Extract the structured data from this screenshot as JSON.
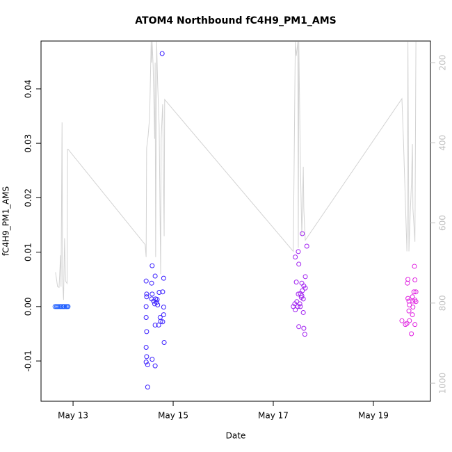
{
  "chart_data": {
    "type": "scatter",
    "title": "ATOM4 Northbound fC4H9_PM1_AMS",
    "xlabel": "Date",
    "ylabel": "fC4H9_PM1_AMS",
    "xlim": [
      12.36,
      20.14
    ],
    "xticks": [
      {
        "value": 13,
        "label": "May 13"
      },
      {
        "value": 15,
        "label": "May 15"
      },
      {
        "value": 17,
        "label": "May 17"
      },
      {
        "value": 19,
        "label": "May 19"
      }
    ],
    "ylim": [
      -0.0174,
      0.0488
    ],
    "yticks": [
      -0.01,
      {
        "value": 0,
        "label": "0.00"
      },
      0.01,
      0.02,
      0.03,
      0.04
    ],
    "y2lim": [
      1045,
      146
    ],
    "y2ticks": [
      200,
      400,
      600,
      800,
      1000
    ],
    "y2color": "#c0c0c0",
    "series": [
      {
        "type": "line",
        "axis": "y2",
        "color": "#d3d3d3",
        "x": [
          12.65,
          12.69,
          12.72,
          12.75,
          12.76,
          12.78,
          12.79,
          12.81,
          12.83,
          12.85,
          12.88,
          12.89,
          12.9,
          14.44,
          14.46,
          14.47,
          14.5,
          14.53,
          14.56,
          14.57,
          14.58,
          14.6,
          14.63,
          14.64,
          14.65,
          14.67,
          14.69,
          14.72,
          14.75,
          14.76,
          14.79,
          14.82,
          14.83,
          17.4,
          17.44,
          17.46,
          17.49,
          17.5,
          17.51,
          17.54,
          17.57,
          17.6,
          17.61,
          17.63,
          17.64,
          19.57,
          19.6,
          19.67,
          19.68,
          19.69,
          19.71,
          19.74,
          19.76,
          19.78,
          19.79,
          19.83,
          19.85
        ],
        "values": [
          723,
          759,
          761,
          681,
          759,
          349,
          737,
          792,
          638,
          745,
          751,
          416,
          416,
          654,
          685,
          413,
          382,
          335,
          148,
          200,
          148,
          209,
          390,
          200,
          685,
          148,
          252,
          356,
          728,
          390,
          304,
          633,
          292,
          671,
          148,
          183,
          148,
          662,
          148,
          442,
          633,
          460,
          564,
          621,
          643,
          290,
          390,
          671,
          564,
          148,
          671,
          564,
          503,
          403,
          564,
          647,
          148
        ]
      },
      {
        "type": "scatter",
        "color": "#1f5fff",
        "x": [
          12.64,
          12.67,
          12.69,
          12.72,
          12.75,
          12.76,
          12.79,
          12.81,
          12.83,
          12.86,
          12.88,
          12.9
        ],
        "values": [
          0,
          0,
          0,
          0,
          0,
          0,
          0,
          0,
          0,
          0,
          0,
          0
        ]
      },
      {
        "type": "scatter",
        "color": "#3a1fff",
        "x": [
          14.46,
          14.47,
          14.47,
          14.46,
          14.46,
          14.47,
          14.46,
          14.47,
          14.46,
          14.49,
          14.49,
          14.57,
          14.58,
          14.58,
          14.57,
          14.58,
          14.61,
          14.63,
          14.64,
          14.64,
          14.64,
          14.65,
          14.67,
          14.68,
          14.69,
          14.71,
          14.72,
          14.74,
          14.75,
          14.78,
          14.79,
          14.81,
          14.81,
          14.81,
          14.79,
          14.82
        ],
        "values": [
          0.0047,
          0.0023,
          0.0018,
          0,
          -0.002,
          -0.0046,
          -0.0075,
          -0.0092,
          -0.0102,
          -0.0107,
          -0.0148,
          0.0043,
          0.0075,
          0.0023,
          0.0014,
          -0.0097,
          0.001,
          0.0005,
          0.0056,
          -0.0034,
          -0.0109,
          0.0014,
          0.0008,
          0.0013,
          0.0003,
          -0.0034,
          0.0026,
          -0.002,
          -0.0027,
          0.0465,
          0.0027,
          0.0052,
          -0.0001,
          -0.0015,
          -0.0028,
          -0.0066
        ]
      },
      {
        "type": "scatter",
        "color": "#a020f0",
        "x": [
          17.44,
          17.5,
          17.51,
          17.46,
          17.4,
          17.43,
          17.44,
          17.47,
          17.49,
          17.5,
          17.51,
          17.53,
          17.54,
          17.54,
          17.56,
          17.57,
          17.57,
          17.58,
          17.58,
          17.6,
          17.61,
          17.61,
          17.63,
          17.64,
          17.67,
          17.64,
          17.6
        ],
        "values": [
          0.0091,
          0.0101,
          0.0078,
          0.0045,
          0,
          0.0005,
          -0.0006,
          0.0009,
          0,
          0.0023,
          -0.0037,
          0.0005,
          0.0024,
          0,
          0.0017,
          0.0043,
          0.002,
          0.0134,
          0.0029,
          -0.0011,
          -0.004,
          0.0038,
          -0.0051,
          0.0055,
          0.0111,
          0.0034,
          0.0014
        ]
      },
      {
        "type": "scatter",
        "color": "#e020e0",
        "x": [
          19.57,
          19.64,
          19.67,
          19.68,
          19.69,
          19.69,
          19.71,
          19.72,
          19.71,
          19.72,
          19.76,
          19.78,
          19.78,
          19.79,
          19.81,
          19.82,
          19.83,
          19.83,
          19.85,
          19.83,
          19.85,
          19.79
        ],
        "values": [
          -0.0026,
          -0.0033,
          -0.0031,
          0.0043,
          0.005,
          0.0015,
          0.001,
          0.0003,
          -0.0008,
          -0.0026,
          -0.005,
          0.0018,
          -0.0015,
          0.001,
          0.0027,
          0.0074,
          0.0049,
          0.0012,
          0.0009,
          -0.0033,
          0.0027,
          -0.0001
        ]
      }
    ]
  }
}
